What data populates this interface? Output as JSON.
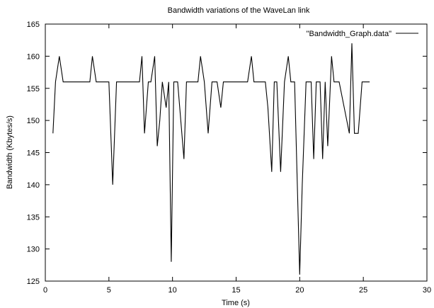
{
  "chart_data": {
    "type": "line",
    "title": "Bandwidth variations of the WaveLan link",
    "xlabel": "Time (s)",
    "ylabel": "Bandwidth (Kbytes/s)",
    "xlim": [
      0,
      30
    ],
    "ylim": [
      125,
      165
    ],
    "xticks": [
      0,
      5,
      10,
      15,
      20,
      25,
      30
    ],
    "yticks": [
      125,
      130,
      135,
      140,
      145,
      150,
      155,
      160,
      165
    ],
    "grid": false,
    "legend_position": "top-right",
    "series": [
      {
        "name": "\"Bandwidth_Graph.data\"",
        "color": "#000000",
        "x": [
          0.6,
          0.8,
          1.1,
          1.4,
          3.5,
          3.7,
          4.0,
          5.0,
          5.3,
          5.6,
          7.4,
          7.6,
          7.8,
          8.1,
          8.3,
          8.6,
          8.8,
          9.0,
          9.2,
          9.5,
          9.7,
          9.9,
          10.1,
          10.4,
          10.9,
          11.1,
          11.3,
          12.0,
          12.2,
          12.5,
          12.8,
          13.1,
          13.5,
          13.8,
          14.0,
          15.9,
          16.2,
          16.4,
          17.3,
          17.5,
          17.8,
          18.0,
          18.2,
          18.5,
          18.8,
          19.1,
          19.3,
          19.6,
          20.0,
          20.2,
          20.5,
          20.9,
          21.1,
          21.3,
          21.6,
          21.8,
          22.0,
          22.2,
          22.5,
          22.7,
          23.1,
          23.9,
          24.1,
          24.3,
          24.6,
          24.9,
          25.1,
          25.5
        ],
        "y": [
          148,
          156,
          160,
          156,
          156,
          160,
          156,
          156,
          140,
          156,
          156,
          160,
          148,
          156,
          156,
          160,
          146,
          150,
          156,
          152,
          156,
          128,
          156,
          156,
          144,
          156,
          156,
          156,
          160,
          156,
          148,
          156,
          156,
          152,
          156,
          156,
          160,
          156,
          156,
          152,
          142,
          156,
          156,
          142,
          156,
          160,
          156,
          156,
          126,
          140,
          156,
          156,
          144,
          156,
          156,
          144,
          156,
          146,
          160,
          156,
          156,
          148,
          162,
          148,
          148,
          156,
          156,
          156
        ]
      }
    ]
  }
}
